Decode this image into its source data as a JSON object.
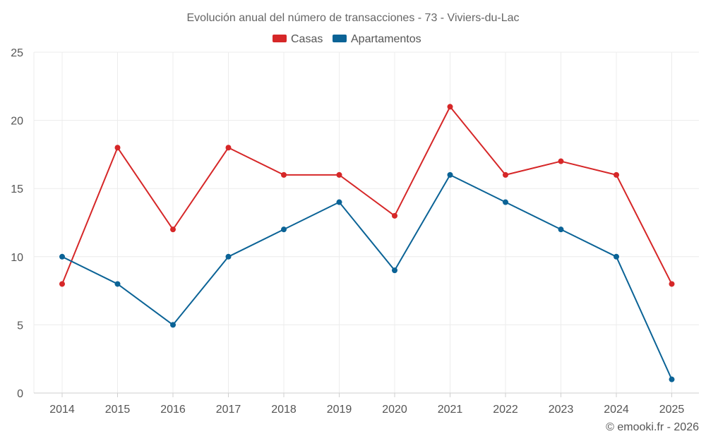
{
  "chart_data": {
    "type": "line",
    "title": "Evolución anual del número de transacciones - 73 - Viviers-du-Lac",
    "categories": [
      "2014",
      "2015",
      "2016",
      "2017",
      "2018",
      "2019",
      "2020",
      "2021",
      "2022",
      "2023",
      "2024",
      "2025"
    ],
    "series": [
      {
        "name": "Casas",
        "color": "#d62728",
        "values": [
          8,
          18,
          12,
          18,
          16,
          16,
          13,
          21,
          16,
          17,
          16,
          8
        ]
      },
      {
        "name": "Apartamentos",
        "color": "#0b6396",
        "values": [
          10,
          8,
          5,
          10,
          12,
          14,
          9,
          16,
          14,
          12,
          10,
          1
        ]
      }
    ],
    "ylim": [
      0,
      25
    ],
    "yticks": [
      0,
      5,
      10,
      15,
      20,
      25
    ],
    "xlabel": "",
    "ylabel": "",
    "grid": true,
    "legend_position": "top-center"
  },
  "credit": "© emooki.fr - 2026"
}
